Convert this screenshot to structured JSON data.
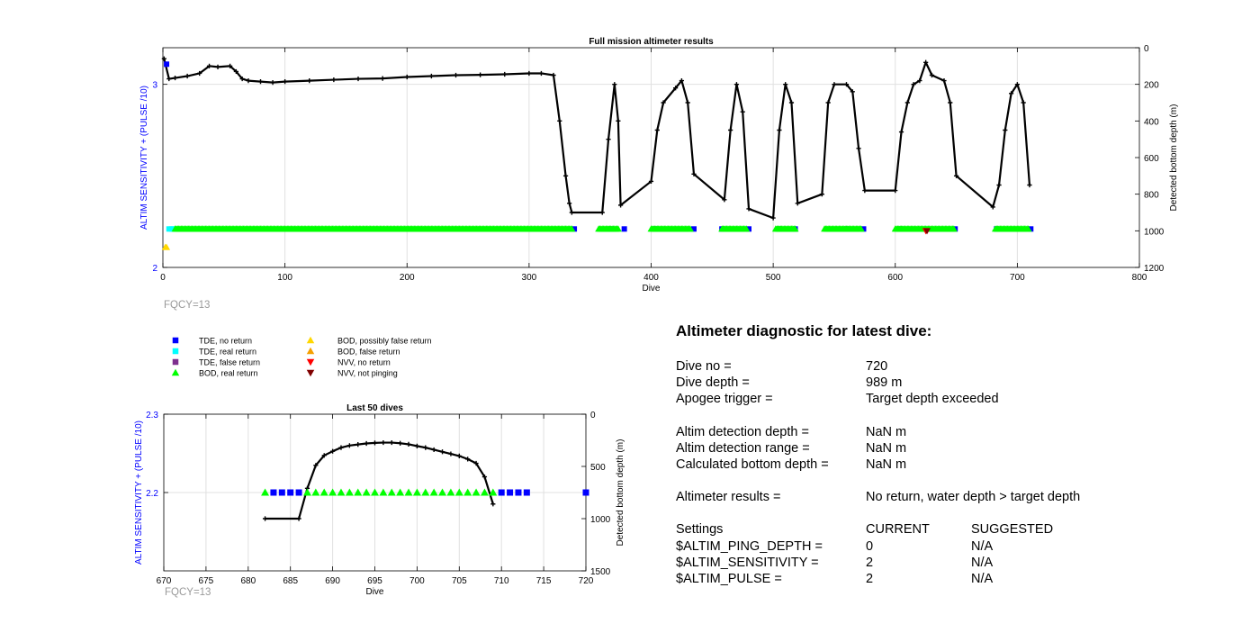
{
  "chart_data": [
    {
      "type": "line",
      "title": "Full mission altimeter results",
      "xlabel": "Dive",
      "ylabel_left": "ALTIM SENSITIVITY + (PULSE /10)",
      "ylabel_right": "Detected bottom depth (m)",
      "xlim": [
        0,
        800
      ],
      "ylim_left": [
        2,
        3.2
      ],
      "ylim_right_reversed": [
        0,
        1200
      ],
      "x_ticks": [
        "0",
        "100",
        "200",
        "300",
        "400",
        "500",
        "600",
        "700",
        "800"
      ],
      "y_left_ticks": [
        "2",
        "3"
      ],
      "y_right_ticks": [
        "0",
        "200",
        "400",
        "600",
        "800",
        "1000",
        "1200"
      ],
      "grid": true,
      "annotation": "FQCY=13",
      "series": [
        {
          "name": "Detected bottom depth",
          "x": [
            1,
            5,
            10,
            20,
            30,
            38,
            45,
            55,
            60,
            65,
            70,
            80,
            90,
            100,
            120,
            140,
            160,
            180,
            200,
            220,
            240,
            260,
            280,
            300,
            310,
            320,
            325,
            330,
            333,
            335,
            360,
            365,
            370,
            373,
            375,
            400,
            405,
            410,
            420,
            425,
            430,
            435,
            460,
            465,
            470,
            475,
            480,
            500,
            505,
            510,
            515,
            520,
            540,
            545,
            550,
            560,
            565,
            570,
            575,
            600,
            605,
            610,
            615,
            620,
            625,
            630,
            640,
            645,
            650,
            680,
            685,
            690,
            695,
            700,
            705,
            710
          ],
          "y": [
            60,
            170,
            165,
            155,
            140,
            100,
            105,
            100,
            130,
            170,
            180,
            185,
            190,
            185,
            180,
            175,
            170,
            168,
            160,
            155,
            150,
            148,
            145,
            140,
            140,
            150,
            400,
            700,
            850,
            900,
            900,
            500,
            200,
            400,
            860,
            730,
            450,
            300,
            220,
            180,
            300,
            690,
            830,
            450,
            200,
            350,
            880,
            930,
            450,
            200,
            300,
            850,
            800,
            300,
            200,
            200,
            240,
            550,
            780,
            780,
            460,
            300,
            200,
            180,
            80,
            150,
            180,
            300,
            700,
            870,
            750,
            450,
            250,
            200,
            300,
            750
          ]
        },
        {
          "name": "TDE, no return",
          "x": [
            3,
            337,
            367,
            378,
            403,
            435,
            458,
            480,
            505,
            518,
            560,
            574,
            604,
            649,
            683,
            711
          ],
          "y": [
            3.11,
            2.21,
            2.21,
            2.21,
            2.21,
            2.21,
            2.21,
            2.21,
            2.21,
            2.21,
            2.21,
            2.21,
            2.21,
            2.21,
            2.21,
            2.21
          ]
        },
        {
          "name": "TDE, real return",
          "x": [
            5,
            7,
            9
          ],
          "y": [
            2.21,
            2.21,
            2.21
          ]
        },
        {
          "name": "BOD, real return",
          "ranges": [
            [
              10,
              335
            ],
            [
              357,
              373
            ],
            [
              400,
              432
            ],
            [
              458,
              478
            ],
            [
              502,
              518
            ],
            [
              542,
              572
            ],
            [
              600,
              648
            ],
            [
              682,
              709
            ]
          ],
          "y": 2.21
        },
        {
          "name": "BOD, possibly false return",
          "x": [
            2,
            3
          ],
          "y": [
            2.11,
            2.11
          ]
        },
        {
          "name": "NVV, no return",
          "x": [
            625
          ],
          "y": [
            2.2
          ]
        },
        {
          "name": "NVV, not pinging",
          "x": [
            626
          ],
          "y": [
            2.2
          ]
        }
      ]
    },
    {
      "type": "line",
      "title": "Last 50 dives",
      "xlabel": "Dive",
      "ylabel_left": "ALTIM SENSITIVITY + (PULSE /10)",
      "ylabel_right": "Detected bottom depth (m)",
      "xlim": [
        670,
        720
      ],
      "ylim_left": [
        2.1,
        2.3
      ],
      "ylim_right_reversed": [
        0,
        1500
      ],
      "x_ticks": [
        "670",
        "675",
        "680",
        "685",
        "690",
        "695",
        "700",
        "705",
        "710",
        "715",
        "720"
      ],
      "y_left_ticks": [
        "2.2",
        "2.3"
      ],
      "y_right_ticks": [
        "0",
        "500",
        "1000",
        "1500"
      ],
      "grid": true,
      "annotation": "FQCY=13",
      "series": [
        {
          "name": "Detected bottom depth",
          "x": [
            682,
            686,
            687,
            688,
            689,
            690,
            691,
            692,
            693,
            694,
            695,
            696,
            697,
            698,
            699,
            700,
            701,
            702,
            703,
            704,
            705,
            706,
            707,
            708,
            709
          ],
          "y": [
            1000,
            1000,
            710,
            490,
            395,
            355,
            320,
            300,
            290,
            280,
            275,
            272,
            272,
            278,
            288,
            305,
            320,
            340,
            360,
            380,
            400,
            430,
            470,
            600,
            860
          ]
        },
        {
          "name": "TDE, no return",
          "x": [
            683,
            684,
            685,
            686,
            710,
            711,
            712,
            713,
            720
          ],
          "y": [
            2.2,
            2.2,
            2.2,
            2.2,
            2.2,
            2.2,
            2.2,
            2.2,
            2.2
          ]
        },
        {
          "name": "BOD, real return",
          "x": [
            682,
            687,
            688,
            689,
            690,
            691,
            692,
            693,
            694,
            695,
            696,
            697,
            698,
            699,
            700,
            701,
            702,
            703,
            704,
            705,
            706,
            707,
            708,
            709
          ],
          "y": [
            2.2,
            2.2,
            2.2,
            2.2,
            2.2,
            2.2,
            2.2,
            2.2,
            2.2,
            2.2,
            2.2,
            2.2,
            2.2,
            2.2,
            2.2,
            2.2,
            2.2,
            2.2,
            2.2,
            2.2,
            2.2,
            2.2,
            2.2,
            2.2
          ]
        }
      ]
    }
  ],
  "legend": [
    {
      "label": "TDE, no return",
      "marker": "square",
      "color": "#0000ff"
    },
    {
      "label": "TDE, real return",
      "marker": "square",
      "color": "#00ffff"
    },
    {
      "label": "TDE, false return",
      "marker": "square",
      "color": "#7e2f8e"
    },
    {
      "label": "BOD, real return",
      "marker": "triangle-up",
      "color": "#00ff00"
    },
    {
      "label": "BOD, possibly false return",
      "marker": "triangle-up",
      "color": "#ffd700"
    },
    {
      "label": "BOD, false return",
      "marker": "triangle-up",
      "color": "#f5a000"
    },
    {
      "label": "NVV, no return",
      "marker": "triangle-down",
      "color": "#ff0000"
    },
    {
      "label": "NVV, not pinging",
      "marker": "triangle-down",
      "color": "#800000"
    }
  ],
  "colors": {
    "axis": "#000000",
    "left_axis_label": "#0000ff",
    "grid": "#e0e0e0",
    "fqcy": "#999999",
    "depth_line": "#000000"
  },
  "diagnostic": {
    "title": "Altimeter diagnostic for latest dive:",
    "rows1": [
      {
        "label": "Dive no =",
        "value": "720"
      },
      {
        "label": "Dive depth =",
        "value": "989 m"
      },
      {
        "label": "Apogee trigger =",
        "value": "Target depth exceeded"
      }
    ],
    "rows2": [
      {
        "label": "Altim detection depth =",
        "value": "NaN m"
      },
      {
        "label": "Altim detection range =",
        "value": "NaN m"
      },
      {
        "label": "Calculated bottom depth =",
        "value": "NaN m"
      }
    ],
    "results": {
      "label": "Altimeter results =",
      "value": "No return, water depth > target depth"
    },
    "settings_header": {
      "label": "Settings",
      "current": "CURRENT",
      "suggested": "SUGGESTED"
    },
    "settings": [
      {
        "label": "$ALTIM_PING_DEPTH =",
        "current": "0",
        "suggested": "N/A"
      },
      {
        "label": "$ALTIM_SENSITIVITY =",
        "current": "2",
        "suggested": "N/A"
      },
      {
        "label": "$ALTIM_PULSE =",
        "current": "2",
        "suggested": "N/A"
      }
    ]
  }
}
